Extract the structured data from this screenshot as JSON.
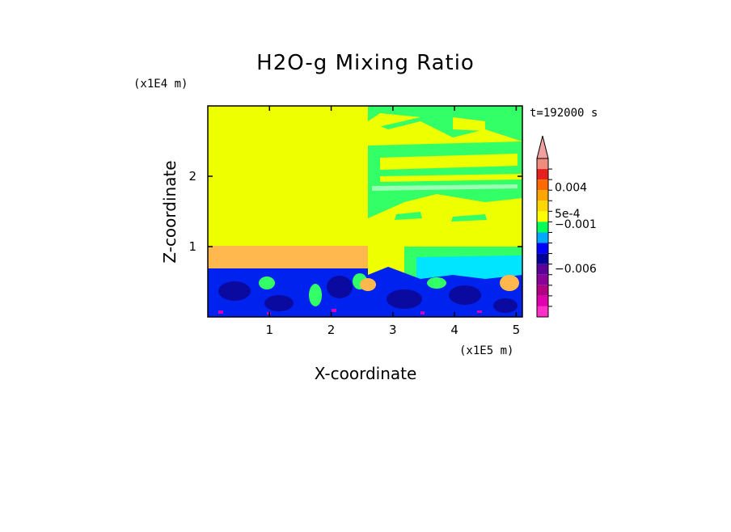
{
  "chart_data": {
    "type": "heatmap",
    "title": "H2O-g Mixing Ratio",
    "xlabel": "X-coordinate",
    "ylabel": "Z-coordinate",
    "x_scale_label": "(x1E5 m)",
    "y_scale_label": "(x1E4 m)",
    "time_label": "t=192000 s",
    "xlim": [
      0,
      5.1
    ],
    "ylim": [
      0,
      3
    ],
    "x_ticks": [
      1,
      2,
      3,
      4,
      5
    ],
    "x_tick_labels": [
      "1",
      "2",
      "3",
      "4",
      "5"
    ],
    "y_ticks": [
      1,
      2
    ],
    "y_tick_labels": [
      "1",
      "2"
    ],
    "colorbar": {
      "levels_top_to_bottom": [
        "#f08c7c",
        "#e52020",
        "#ff6a00",
        "#ffa500",
        "#ffd700",
        "#ffff00",
        "#00ff5a",
        "#00a8ff",
        "#0000ff",
        "#000099",
        "#5a0099",
        "#8a0099",
        "#b10080",
        "#e000b0",
        "#ff30c8"
      ],
      "extend_arrow_color": "#f0a0a0",
      "tick_labels": [
        "0.004",
        "5e-4",
        "−0.001",
        "−0.006"
      ]
    },
    "regions": [
      {
        "name": "upper-background",
        "color": "#eeff00"
      },
      {
        "name": "right-upper-green-bands",
        "color": "#33ff66"
      },
      {
        "name": "mid-orange-band",
        "color": "#ffb84d"
      },
      {
        "name": "lower-cyan",
        "color": "#00e5ff"
      },
      {
        "name": "lower-blue",
        "color": "#0022ee"
      },
      {
        "name": "lower-darkblue",
        "color": "#0a0aa0"
      },
      {
        "name": "bottom-magenta",
        "color": "#d000c0"
      }
    ]
  }
}
